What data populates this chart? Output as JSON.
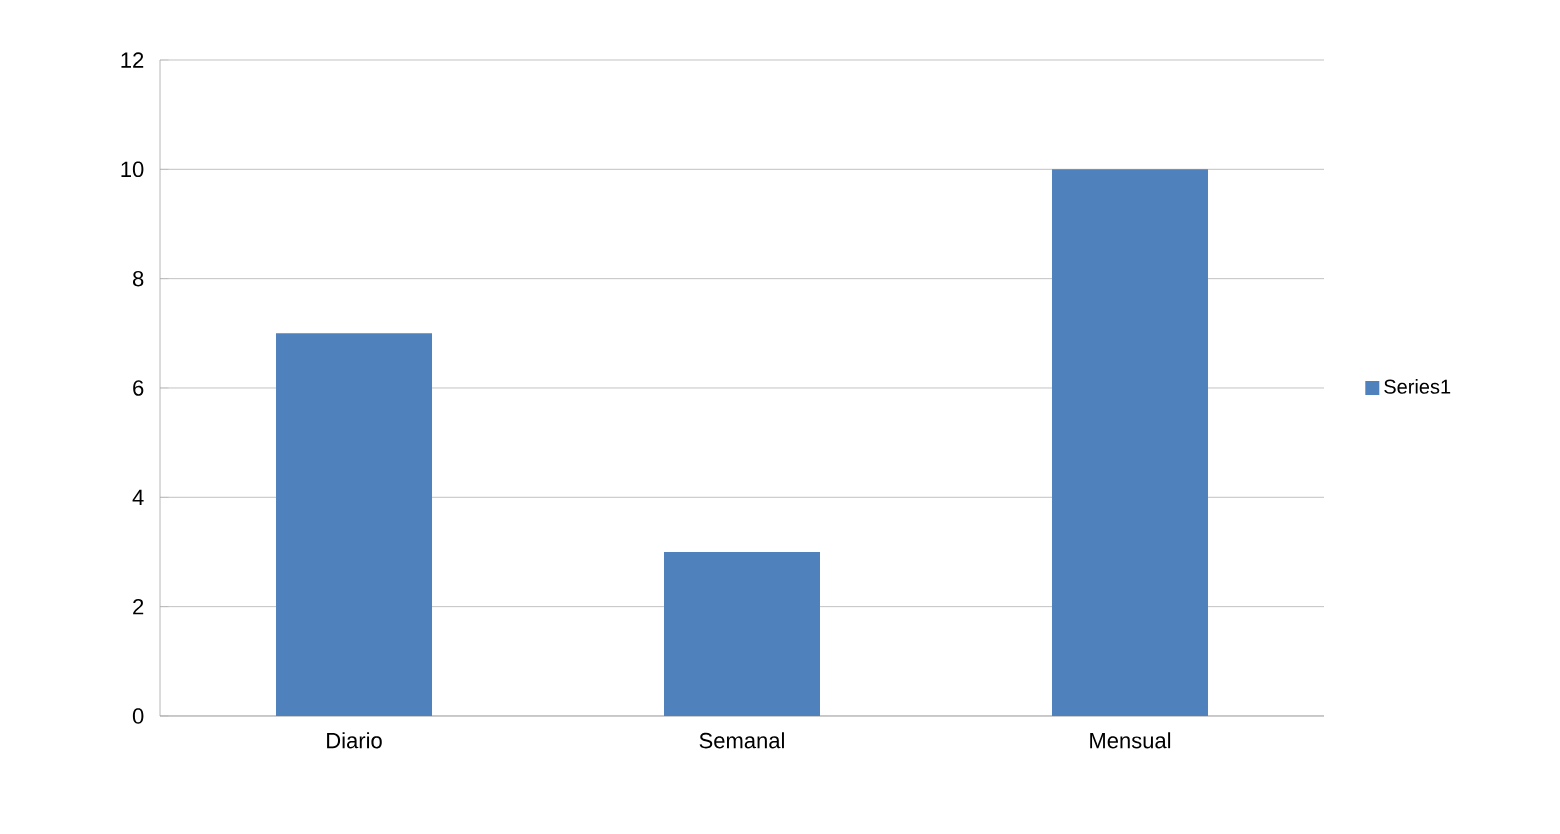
{
  "chart_data": {
    "type": "bar",
    "categories": [
      "Diario",
      "Semanal",
      "Mensual"
    ],
    "series": [
      {
        "name": "Series1",
        "color": "#4f81bd",
        "values": [
          7,
          3,
          10
        ]
      }
    ],
    "ylim": [
      0,
      12
    ],
    "yticks": [
      0,
      2,
      4,
      6,
      8,
      10,
      12
    ],
    "grid": "y",
    "legend": "right"
  }
}
